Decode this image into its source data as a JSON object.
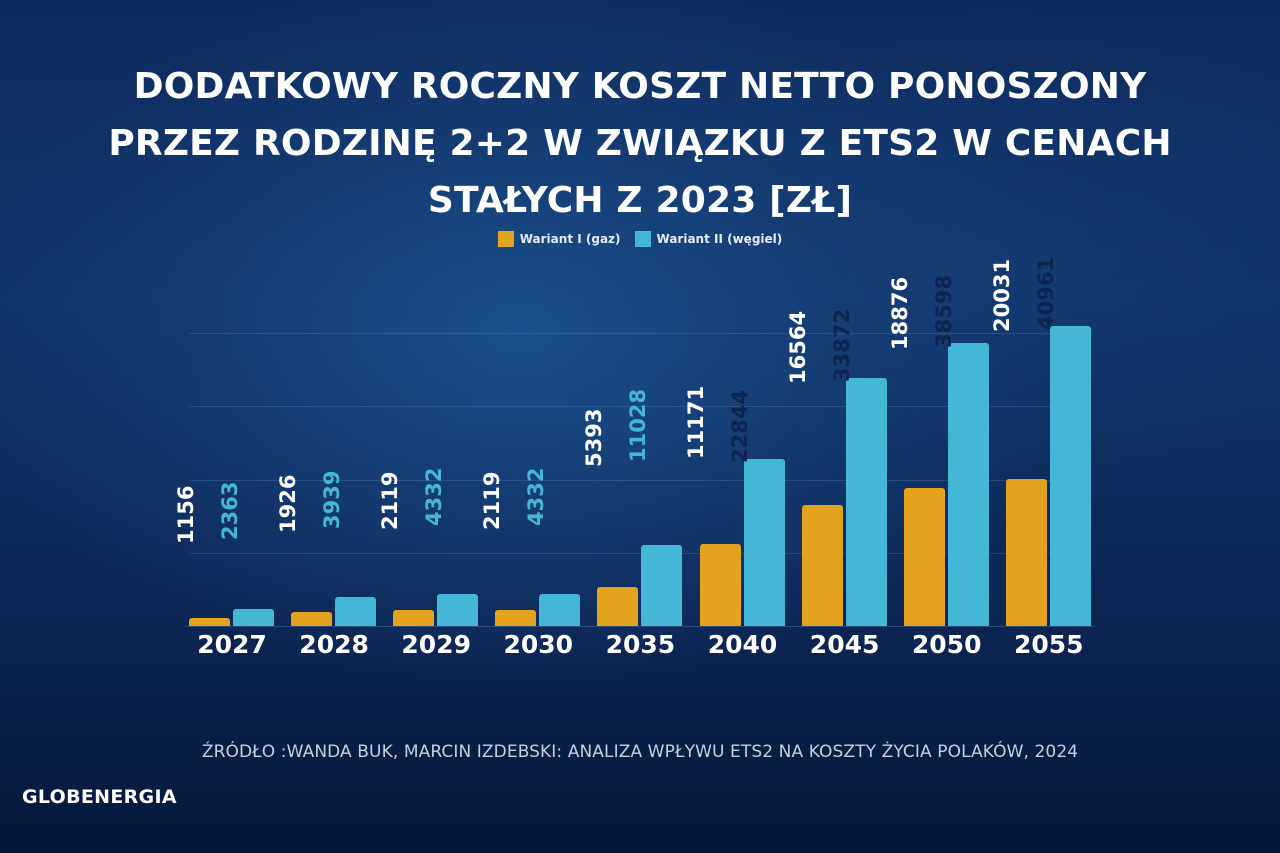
{
  "title": {
    "line1": "DODATKOWY ROCZNY KOSZT NETTO PONOSZONY",
    "line2": "PRZEZ RODZINĘ 2+2 W ZWIĄZKU Z ETS2 W CENACH",
    "line3": "STAŁYCH Z 2023 [ZŁ]"
  },
  "legend": [
    {
      "label": "Wariant I (gaz)",
      "color": "#e3a31f"
    },
    {
      "label": "Wariant II (węgiel)",
      "color": "#45b7d6"
    }
  ],
  "source": "ŹRÓDŁO :WANDA BUK, MARCIN IZDEBSKI: ANALIZA WPŁYWU ETS2 NA KOSZTY ŻYCIA POLAKÓW, 2024",
  "logo": "GLOBENERGIA",
  "chart_data": {
    "type": "bar",
    "title": "DODATKOWY ROCZNY KOSZT NETTO PONOSZONY PRZEZ RODZINĘ 2+2 W ZWIĄZKU Z ETS2 W CENACH STAŁYCH Z 2023 [ZŁ]",
    "categories": [
      "2027",
      "2028",
      "2029",
      "2030",
      "2035",
      "2040",
      "2045",
      "2050",
      "2055"
    ],
    "series": [
      {
        "name": "Wariant I (gaz)",
        "color": "#e3a31f",
        "values": [
          1156,
          1926,
          2119,
          2119,
          5393,
          11171,
          16564,
          18876,
          20031
        ]
      },
      {
        "name": "Wariant II (węgiel)",
        "color": "#45b7d6",
        "values": [
          2363,
          3939,
          4332,
          4332,
          11028,
          22844,
          33872,
          38598,
          40961
        ]
      }
    ],
    "xlabel": "",
    "ylabel": "",
    "ylim": [
      0,
      41000
    ],
    "grid": true,
    "grid_step": 10000,
    "legend_position": "top-center",
    "data_labels": "vertical, above bars (inside top of tall bars)"
  }
}
